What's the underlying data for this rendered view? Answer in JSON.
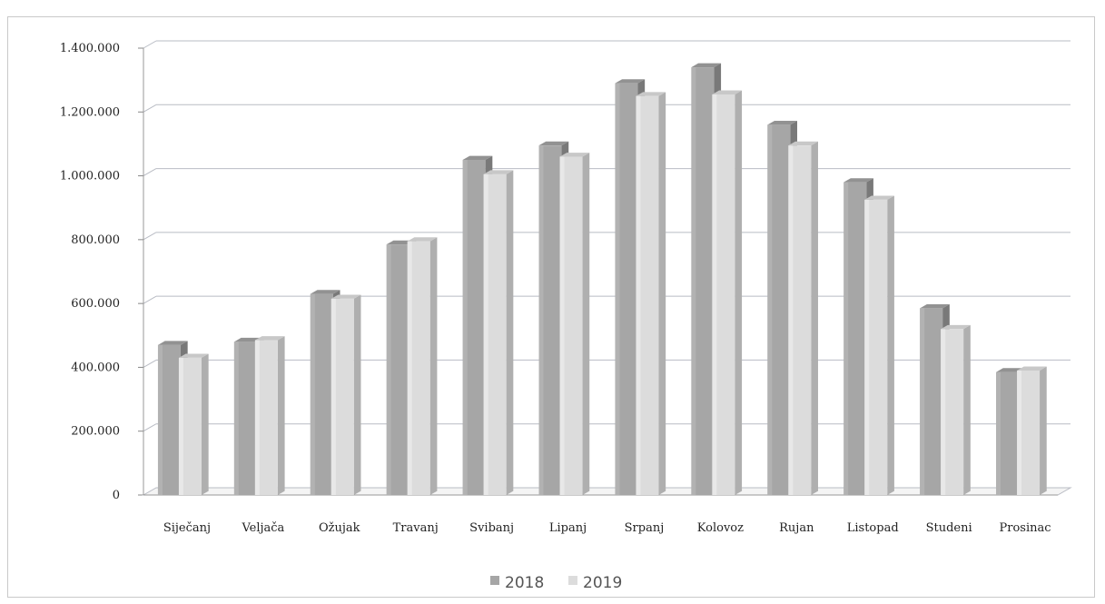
{
  "chart_data": {
    "type": "bar",
    "categories": [
      "Siječanj",
      "Veljača",
      "Ožujak",
      "Travanj",
      "Svibanj",
      "Lipanj",
      "Srpanj",
      "Kolovoz",
      "Rujan",
      "Listopad",
      "Studeni",
      "Prosinac"
    ],
    "series": [
      {
        "name": "2018",
        "color": "#a6a6a6",
        "values": [
          470000,
          480000,
          630000,
          785000,
          1050000,
          1095000,
          1290000,
          1340000,
          1160000,
          980000,
          585000,
          385000
        ]
      },
      {
        "name": "2019",
        "color": "#dcdcdc",
        "values": [
          430000,
          485000,
          615000,
          795000,
          1005000,
          1060000,
          1250000,
          1255000,
          1095000,
          925000,
          520000,
          390000
        ]
      }
    ],
    "y_ticks": [
      {
        "value": 0,
        "label": "0"
      },
      {
        "value": 200000,
        "label": "200.000"
      },
      {
        "value": 400000,
        "label": "400.000"
      },
      {
        "value": 600000,
        "label": "600.000"
      },
      {
        "value": 800000,
        "label": "800.000"
      },
      {
        "value": 1000000,
        "label": "1.000.000"
      },
      {
        "value": 1200000,
        "label": "1.200.000"
      },
      {
        "value": 1400000,
        "label": "1.400.000"
      }
    ],
    "ylim": [
      0,
      1400000
    ],
    "title": "",
    "xlabel": "",
    "ylabel": "",
    "grid": true,
    "legend_position": "bottom",
    "style": "3d-clustered-column"
  }
}
